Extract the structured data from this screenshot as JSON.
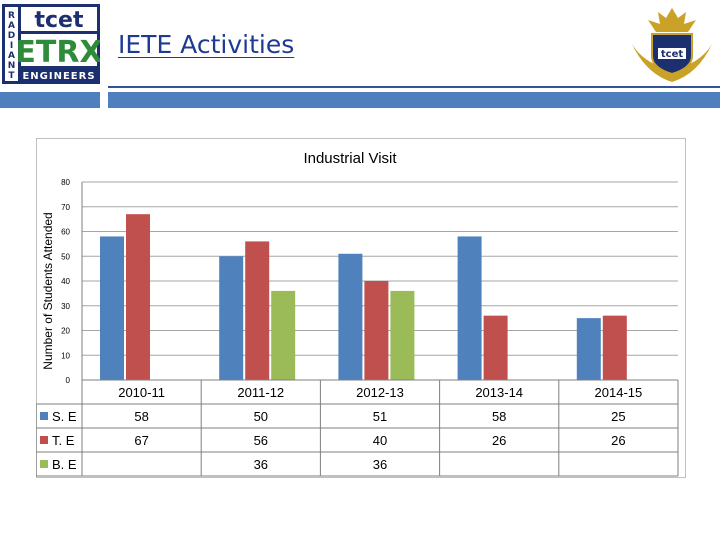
{
  "header": {
    "title": "IETE Activities",
    "logo_left": {
      "side_text": [
        "R",
        "A",
        "D",
        "I",
        "A",
        "N",
        "T"
      ],
      "brand_top": "tcet",
      "brand_main": "ETRX",
      "brand_bottom": "ENGINEERS"
    },
    "logo_right": {
      "brand": "tcet"
    }
  },
  "colors": {
    "title": "#1f3a93",
    "rule": "#4f7fbf",
    "series_se": "#4f81bd",
    "series_te": "#c0504d",
    "series_be": "#9bbb59",
    "logo_green": "#2e8b3a",
    "logo_navy": "#1c2f6e",
    "gold": "#c9a227"
  },
  "chart_data": {
    "type": "bar",
    "title": "Industrial Visit",
    "ylabel": "Number of Students Attended",
    "xlabel": "",
    "categories": [
      "2010-11",
      "2011-12",
      "2012-13",
      "2013-14",
      "2014-15"
    ],
    "ylim": [
      0,
      80
    ],
    "yticks": [
      0,
      10,
      20,
      30,
      40,
      50,
      60,
      70,
      80
    ],
    "grid": true,
    "legend_position": "data-table-left",
    "series": [
      {
        "name": "S. E",
        "values": [
          58,
          50,
          51,
          58,
          25
        ],
        "color": "#4f81bd"
      },
      {
        "name": "T. E",
        "values": [
          67,
          56,
          40,
          26,
          26
        ],
        "color": "#c0504d"
      },
      {
        "name": "B. E",
        "values": [
          null,
          36,
          36,
          null,
          null
        ],
        "color": "#9bbb59"
      }
    ]
  }
}
